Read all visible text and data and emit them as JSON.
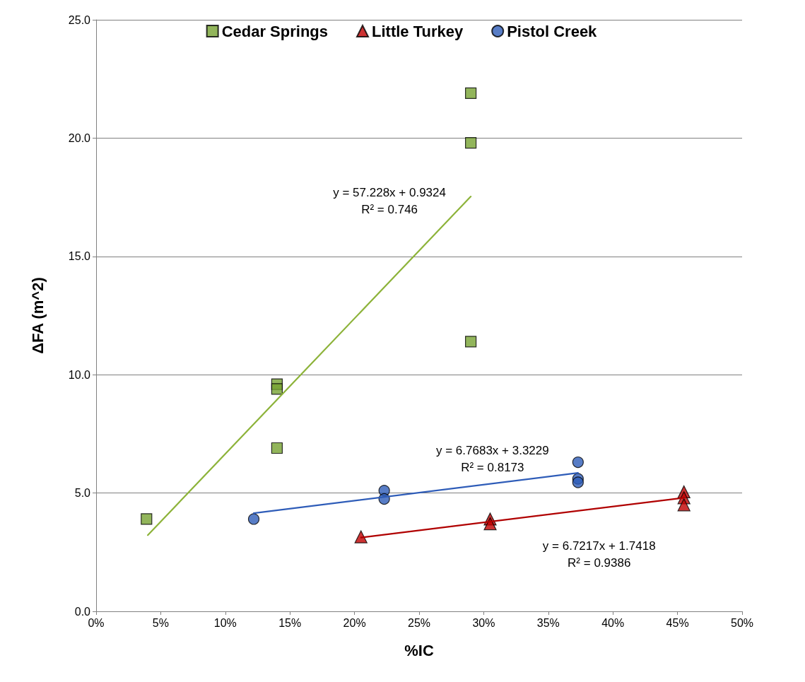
{
  "chart_data": {
    "type": "scatter",
    "xlabel": "%IC",
    "ylabel": "ΔFA (m^2)",
    "xlim": [
      0,
      50
    ],
    "xticks": [
      {
        "value": 0,
        "label": "0%"
      },
      {
        "value": 5,
        "label": "5%"
      },
      {
        "value": 10,
        "label": "10%"
      },
      {
        "value": 15,
        "label": "15%"
      },
      {
        "value": 20,
        "label": "20%"
      },
      {
        "value": 25,
        "label": "25%"
      },
      {
        "value": 30,
        "label": "30%"
      },
      {
        "value": 35,
        "label": "35%"
      },
      {
        "value": 40,
        "label": "40%"
      },
      {
        "value": 45,
        "label": "45%"
      },
      {
        "value": 50,
        "label": "50%"
      }
    ],
    "ylim": [
      0,
      25
    ],
    "yticks": [
      {
        "value": 0,
        "label": "0.0"
      },
      {
        "value": 5,
        "label": "5.0"
      },
      {
        "value": 10,
        "label": "10.0"
      },
      {
        "value": 15,
        "label": "15.0"
      },
      {
        "value": 20,
        "label": "20.0"
      },
      {
        "value": 25,
        "label": "25.0"
      }
    ],
    "grid": "y",
    "legend": "top",
    "series": [
      {
        "name": "Cedar Springs",
        "color": "#77a232",
        "marker": "square",
        "x": [
          3.9,
          14.0,
          14.0,
          14.0,
          29.0,
          29.0,
          29.0
        ],
        "values": [
          3.9,
          9.6,
          9.4,
          6.9,
          11.4,
          19.8,
          21.9
        ]
      },
      {
        "name": "Little Turkey",
        "color": "#c00000",
        "marker": "triangle",
        "x": [
          20.5,
          30.5,
          30.5,
          45.5,
          45.5,
          45.5
        ],
        "values": [
          3.15,
          3.9,
          3.7,
          5.05,
          4.8,
          4.5
        ]
      },
      {
        "name": "Pistol Creek",
        "color": "#2e5cb8",
        "marker": "circle",
        "x": [
          12.2,
          22.3,
          22.3,
          37.3,
          37.3,
          37.3
        ],
        "values": [
          3.9,
          5.1,
          4.75,
          6.3,
          5.6,
          5.45
        ]
      },
      {
        "type": "line",
        "color": "#8db33a",
        "marker": "none",
        "x": [
          4.0,
          29.0
        ],
        "values": [
          3.22,
          17.53
        ]
      },
      {
        "type": "line",
        "color": "#2e5cb8",
        "marker": "none",
        "x": [
          12.2,
          37.3
        ],
        "values": [
          4.15,
          5.85
        ]
      },
      {
        "type": "line",
        "color": "#b00000",
        "marker": "none",
        "x": [
          20.5,
          45.5
        ],
        "values": [
          3.12,
          4.8
        ]
      }
    ],
    "annotations": [
      "y = 57.228x + 0.9324\nR² = 0.746",
      "y = 6.7683x + 3.3229\nR² = 0.8173",
      "y = 6.7217x + 1.7418\nR² = 0.9386"
    ]
  }
}
